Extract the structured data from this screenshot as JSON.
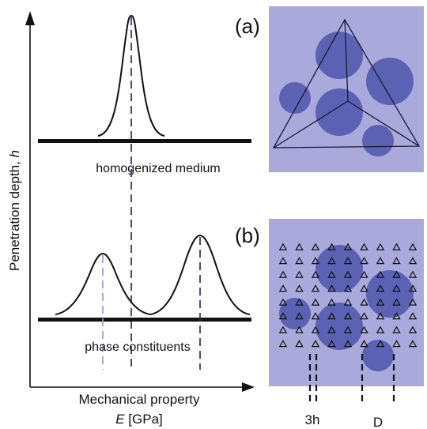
{
  "left_plot": {
    "y_axis_label": "Penetration depth, ",
    "y_axis_symbol": "h",
    "x_axis_label": "Mechanical property",
    "x_unit_symbol": "E",
    "x_unit": " [GPa]",
    "homogenized_label": "homogenized medium",
    "phases_label": "phase constituents"
  },
  "panel_a": {
    "label": "(a)"
  },
  "panel_b": {
    "label": "(b)",
    "spacing_label": "3h",
    "diameter_label": "D",
    "indent_rows": 8,
    "indent_cols": 9
  },
  "colors": {
    "panel_background": "#a9a9dc",
    "inclusion": "#5b62b4",
    "dashed_light": "#9a9ad6",
    "dashed_mid": "#5a5cb0",
    "dashed_dark": "#2c2c6e",
    "curve": "#111111"
  }
}
